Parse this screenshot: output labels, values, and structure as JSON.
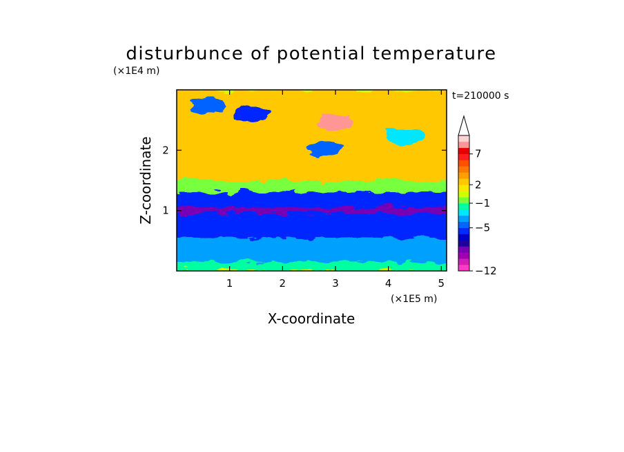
{
  "chart_data": {
    "type": "heatmap",
    "title": "disturbunce of potential temperature",
    "time_label": "t=210000 s",
    "xlabel": "X-coordinate",
    "ylabel": "Z-coordinate",
    "x_unit": "(×1E5 m)",
    "y_unit": "(×1E4 m)",
    "xlim": [
      0,
      5.1
    ],
    "ylim": [
      0,
      3.0
    ],
    "x_ticks": [
      1,
      2,
      3,
      4,
      5
    ],
    "y_ticks": [
      1,
      2
    ],
    "colorbar": {
      "levels": [
        -12,
        -11,
        -10,
        -9,
        -8,
        -7,
        -6,
        -5,
        -4,
        -3,
        -2,
        -1,
        0,
        1,
        2,
        3,
        4,
        5,
        6,
        7,
        8,
        9
      ],
      "colors": [
        "#ff3cc8",
        "#d21eb4",
        "#a000b4",
        "#7800b4",
        "#1e00a0",
        "#0000c8",
        "#0028ff",
        "#0064ff",
        "#00a0ff",
        "#00e6ff",
        "#00ffa0",
        "#78ff3c",
        "#d2ff00",
        "#ffe600",
        "#ffc800",
        "#ffa000",
        "#ff7800",
        "#ff5000",
        "#ff1e1e",
        "#e60000",
        "#ff9696",
        "#ffd2d2"
      ],
      "labeled_ticks": [
        {
          "value": 7,
          "label": "7"
        },
        {
          "value": 2,
          "label": "2"
        },
        {
          "value": -1,
          "label": "−1"
        },
        {
          "value": -5,
          "label": "−5"
        },
        {
          "value": -12,
          "label": "−12"
        }
      ],
      "extend": "max"
    },
    "field_description_bands": [
      {
        "z_range": [
          0.0,
          0.15
        ],
        "typical_value": -2
      },
      {
        "z_range": [
          0.15,
          0.55
        ],
        "typical_value": -4
      },
      {
        "z_range": [
          0.55,
          1.3
        ],
        "typical_value": -6
      },
      {
        "z_range": [
          0.95,
          1.05
        ],
        "typical_value": -9
      },
      {
        "z_range": [
          1.3,
          1.5
        ],
        "typical_value": -1
      },
      {
        "z_range": [
          1.5,
          3.0
        ],
        "typical_value": 2
      }
    ],
    "features": [
      {
        "x": 3.0,
        "z": 2.45,
        "value": 8
      },
      {
        "x": 2.8,
        "z": 2.05,
        "value": -5
      },
      {
        "x": 1.4,
        "z": 2.6,
        "value": -6
      },
      {
        "x": 0.6,
        "z": 2.75,
        "value": -5
      },
      {
        "x": 4.3,
        "z": 2.25,
        "value": -3
      }
    ]
  }
}
